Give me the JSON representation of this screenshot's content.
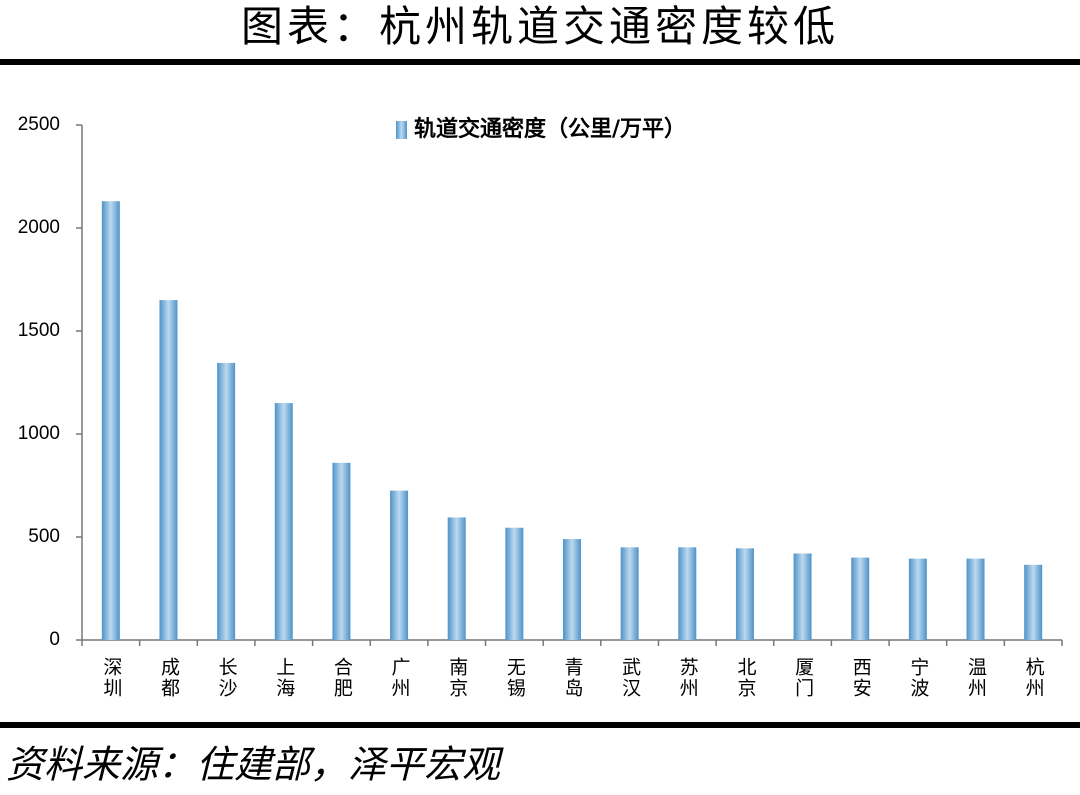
{
  "header": {
    "title": "图表：杭州轨道交通密度较低"
  },
  "chart_data": {
    "type": "bar",
    "categories": [
      "深圳",
      "成都",
      "长沙",
      "上海",
      "合肥",
      "广州",
      "南京",
      "无锡",
      "青岛",
      "武汉",
      "苏州",
      "北京",
      "厦门",
      "西安",
      "宁波",
      "温州",
      "杭州"
    ],
    "series": [
      {
        "name": "轨道交通密度（公里/万平）",
        "color": "#4f93c8",
        "values": [
          2130,
          1650,
          1345,
          1150,
          860,
          725,
          595,
          545,
          490,
          450,
          450,
          445,
          420,
          400,
          395,
          395,
          365
        ]
      }
    ],
    "ylim": [
      0,
      2500
    ],
    "yticks": [
      0,
      500,
      1000,
      1500,
      2000,
      2500
    ],
    "grid": false,
    "legend": "top"
  },
  "footer": {
    "source": "资料来源：住建部，泽平宏观"
  }
}
